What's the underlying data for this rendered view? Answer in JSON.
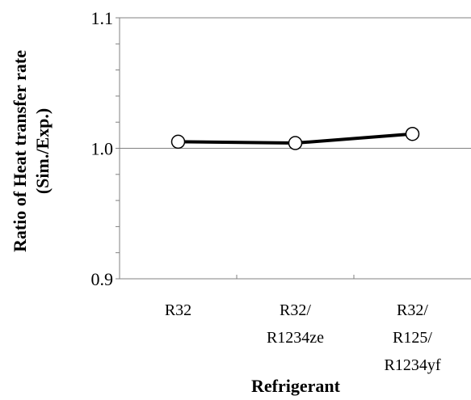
{
  "chart_data": {
    "type": "line",
    "title": "",
    "xlabel": "Refrigerant",
    "ylabel_lines": [
      "Ratio of Heat transfer rate",
      "(Sim./Exp.)"
    ],
    "categories": [
      [
        "R32"
      ],
      [
        "R32/",
        "R1234ze"
      ],
      [
        "R32/",
        "R125/",
        "R1234yf"
      ]
    ],
    "series": [
      {
        "values": [
          1.005,
          1.004,
          1.011
        ]
      }
    ],
    "ylim": [
      0.9,
      1.1
    ],
    "yticks": [
      "0.9",
      "1.0",
      "1.1"
    ],
    "grid": "horizontal major gridlines",
    "legend": "none",
    "colors": {
      "line": "#000000",
      "marker_fill": "#ffffff",
      "gridline": "#808080",
      "axis": "#808080"
    }
  }
}
